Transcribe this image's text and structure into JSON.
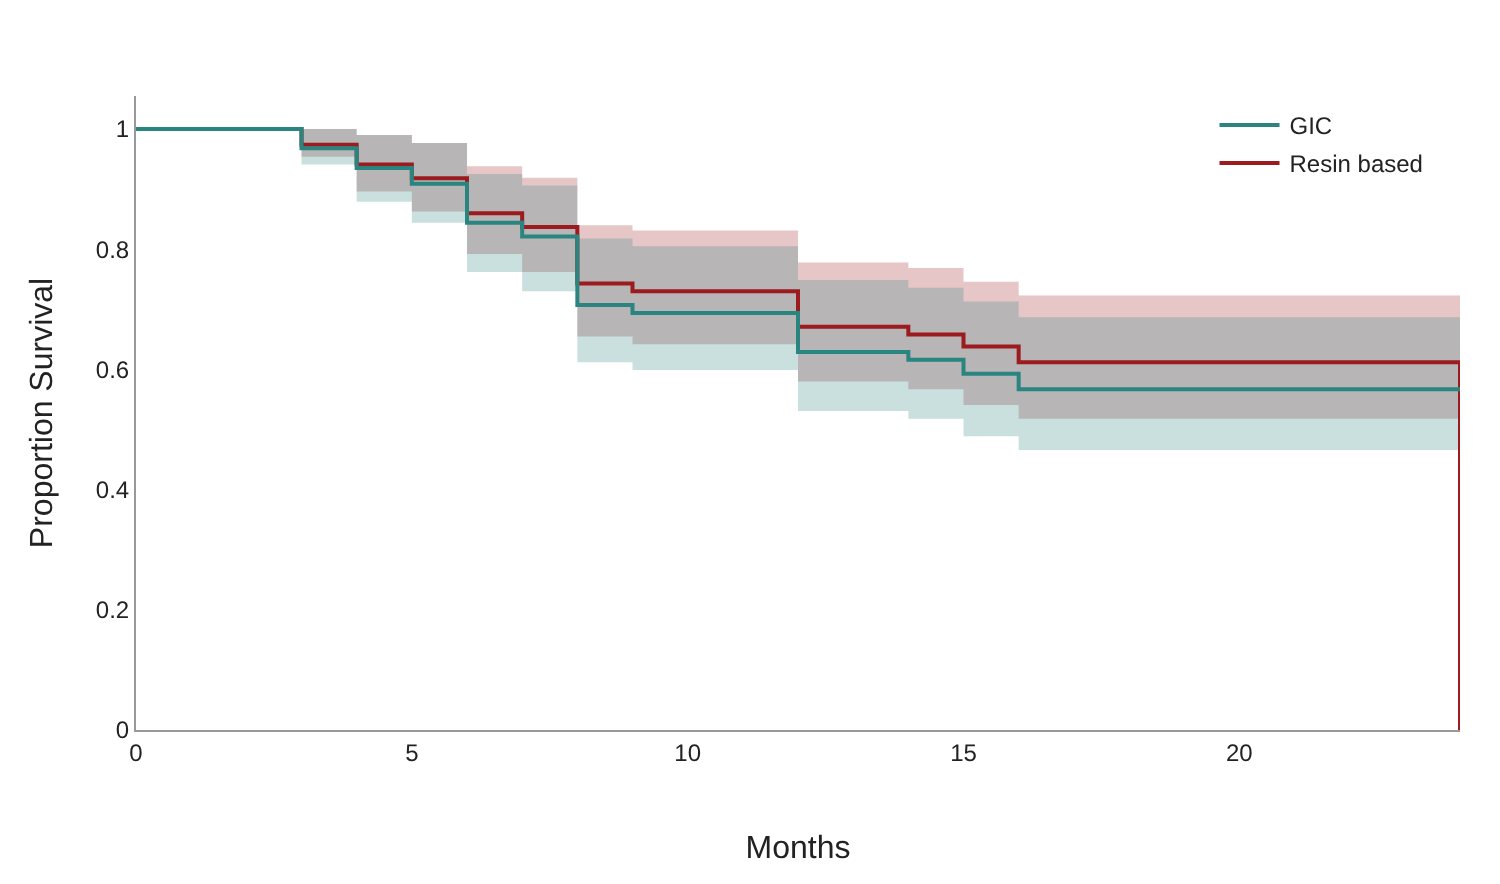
{
  "chart_data": {
    "type": "step",
    "xlabel": "Months",
    "ylabel": "Proportion Survival",
    "x": [
      0,
      3,
      4,
      5,
      6,
      7,
      8,
      9,
      12,
      14,
      15,
      16,
      24
    ],
    "series": [
      {
        "name": "Resin based",
        "color": "#9b1b1e",
        "values": [
          1,
          0.974,
          0.941,
          0.918,
          0.86,
          0.837,
          0.743,
          0.73,
          0.671,
          0.658,
          0.638,
          0.612,
          0
        ],
        "lower": [
          1,
          0.954,
          0.896,
          0.863,
          0.792,
          0.762,
          0.655,
          0.642,
          0.58,
          0.567,
          0.541,
          0.518,
          0.518
        ],
        "upper": [
          1,
          1,
          0.99,
          0.977,
          0.938,
          0.919,
          0.84,
          0.831,
          0.778,
          0.769,
          0.746,
          0.723,
          0.723
        ]
      },
      {
        "name": "GIC",
        "color": "#2a8580",
        "values": [
          1,
          0.968,
          0.935,
          0.909,
          0.844,
          0.821,
          0.707,
          0.694,
          0.629,
          0.616,
          0.593,
          0.567,
          0.567
        ],
        "lower": [
          1,
          0.941,
          0.879,
          0.844,
          0.762,
          0.73,
          0.612,
          0.599,
          0.531,
          0.518,
          0.489,
          0.466,
          0.466
        ],
        "upper": [
          1,
          1,
          0.99,
          0.977,
          0.925,
          0.906,
          0.818,
          0.805,
          0.749,
          0.736,
          0.713,
          0.687,
          0.687
        ]
      }
    ],
    "xlim": [
      0,
      24
    ],
    "xticks": [
      0,
      5,
      10,
      15,
      20
    ],
    "ylim": [
      0,
      1.055
    ],
    "yticks": [
      0,
      0.2,
      0.4,
      0.6,
      0.8,
      1
    ],
    "grid": false,
    "legend": "top right"
  }
}
